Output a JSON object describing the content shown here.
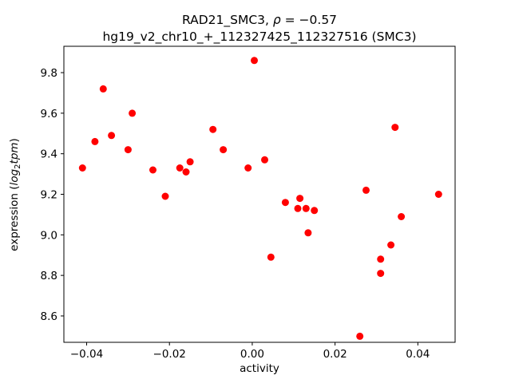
{
  "chart_data": {
    "type": "scatter",
    "title": "RAD21_SMC3, ρ = −0.57",
    "subtitle": "hg19_v2_chr10_+_112327425_112327516 (SMC3)",
    "title_parts": {
      "prefix": "RAD21_SMC3, ",
      "rho": "ρ",
      "suffix": " = −0.57"
    },
    "xlabel": "activity",
    "ylabel": "expression (log₂tpm)",
    "ylabel_parts": {
      "prefix": "expression (",
      "log": "log",
      "sub": "2",
      "tpm": "tpm",
      "suffix": ")"
    },
    "marker_color": "#ff0000",
    "axis_color": "#000000",
    "background_color": "#ffffff",
    "grid": false,
    "legend": null,
    "xlim": [
      -0.0455,
      0.049
    ],
    "ylim": [
      8.47,
      9.93
    ],
    "xticks": [
      -0.04,
      -0.02,
      0.0,
      0.02,
      0.04
    ],
    "xtick_labels": [
      "−0.04",
      "−0.02",
      "0.00",
      "0.02",
      "0.04"
    ],
    "yticks": [
      8.6,
      8.8,
      9.0,
      9.2,
      9.4,
      9.6,
      9.8
    ],
    "ytick_labels": [
      "8.6",
      "8.8",
      "9.0",
      "9.2",
      "9.4",
      "9.6",
      "9.8"
    ],
    "points": [
      [
        -0.041,
        9.33
      ],
      [
        -0.038,
        9.46
      ],
      [
        -0.036,
        9.72
      ],
      [
        -0.034,
        9.49
      ],
      [
        -0.03,
        9.42
      ],
      [
        -0.029,
        9.6
      ],
      [
        -0.024,
        9.32
      ],
      [
        -0.021,
        9.19
      ],
      [
        -0.0175,
        9.33
      ],
      [
        -0.016,
        9.31
      ],
      [
        -0.015,
        9.36
      ],
      [
        -0.0095,
        9.52
      ],
      [
        -0.007,
        9.42
      ],
      [
        -0.001,
        9.33
      ],
      [
        0.0005,
        9.86
      ],
      [
        0.003,
        9.37
      ],
      [
        0.0045,
        8.89
      ],
      [
        0.008,
        9.16
      ],
      [
        0.011,
        9.13
      ],
      [
        0.0115,
        9.18
      ],
      [
        0.013,
        9.13
      ],
      [
        0.0135,
        9.01
      ],
      [
        0.015,
        9.12
      ],
      [
        0.026,
        8.5
      ],
      [
        0.0275,
        9.22
      ],
      [
        0.031,
        8.88
      ],
      [
        0.031,
        8.81
      ],
      [
        0.0335,
        8.95
      ],
      [
        0.0345,
        9.53
      ],
      [
        0.036,
        9.09
      ],
      [
        0.045,
        9.2
      ]
    ]
  }
}
